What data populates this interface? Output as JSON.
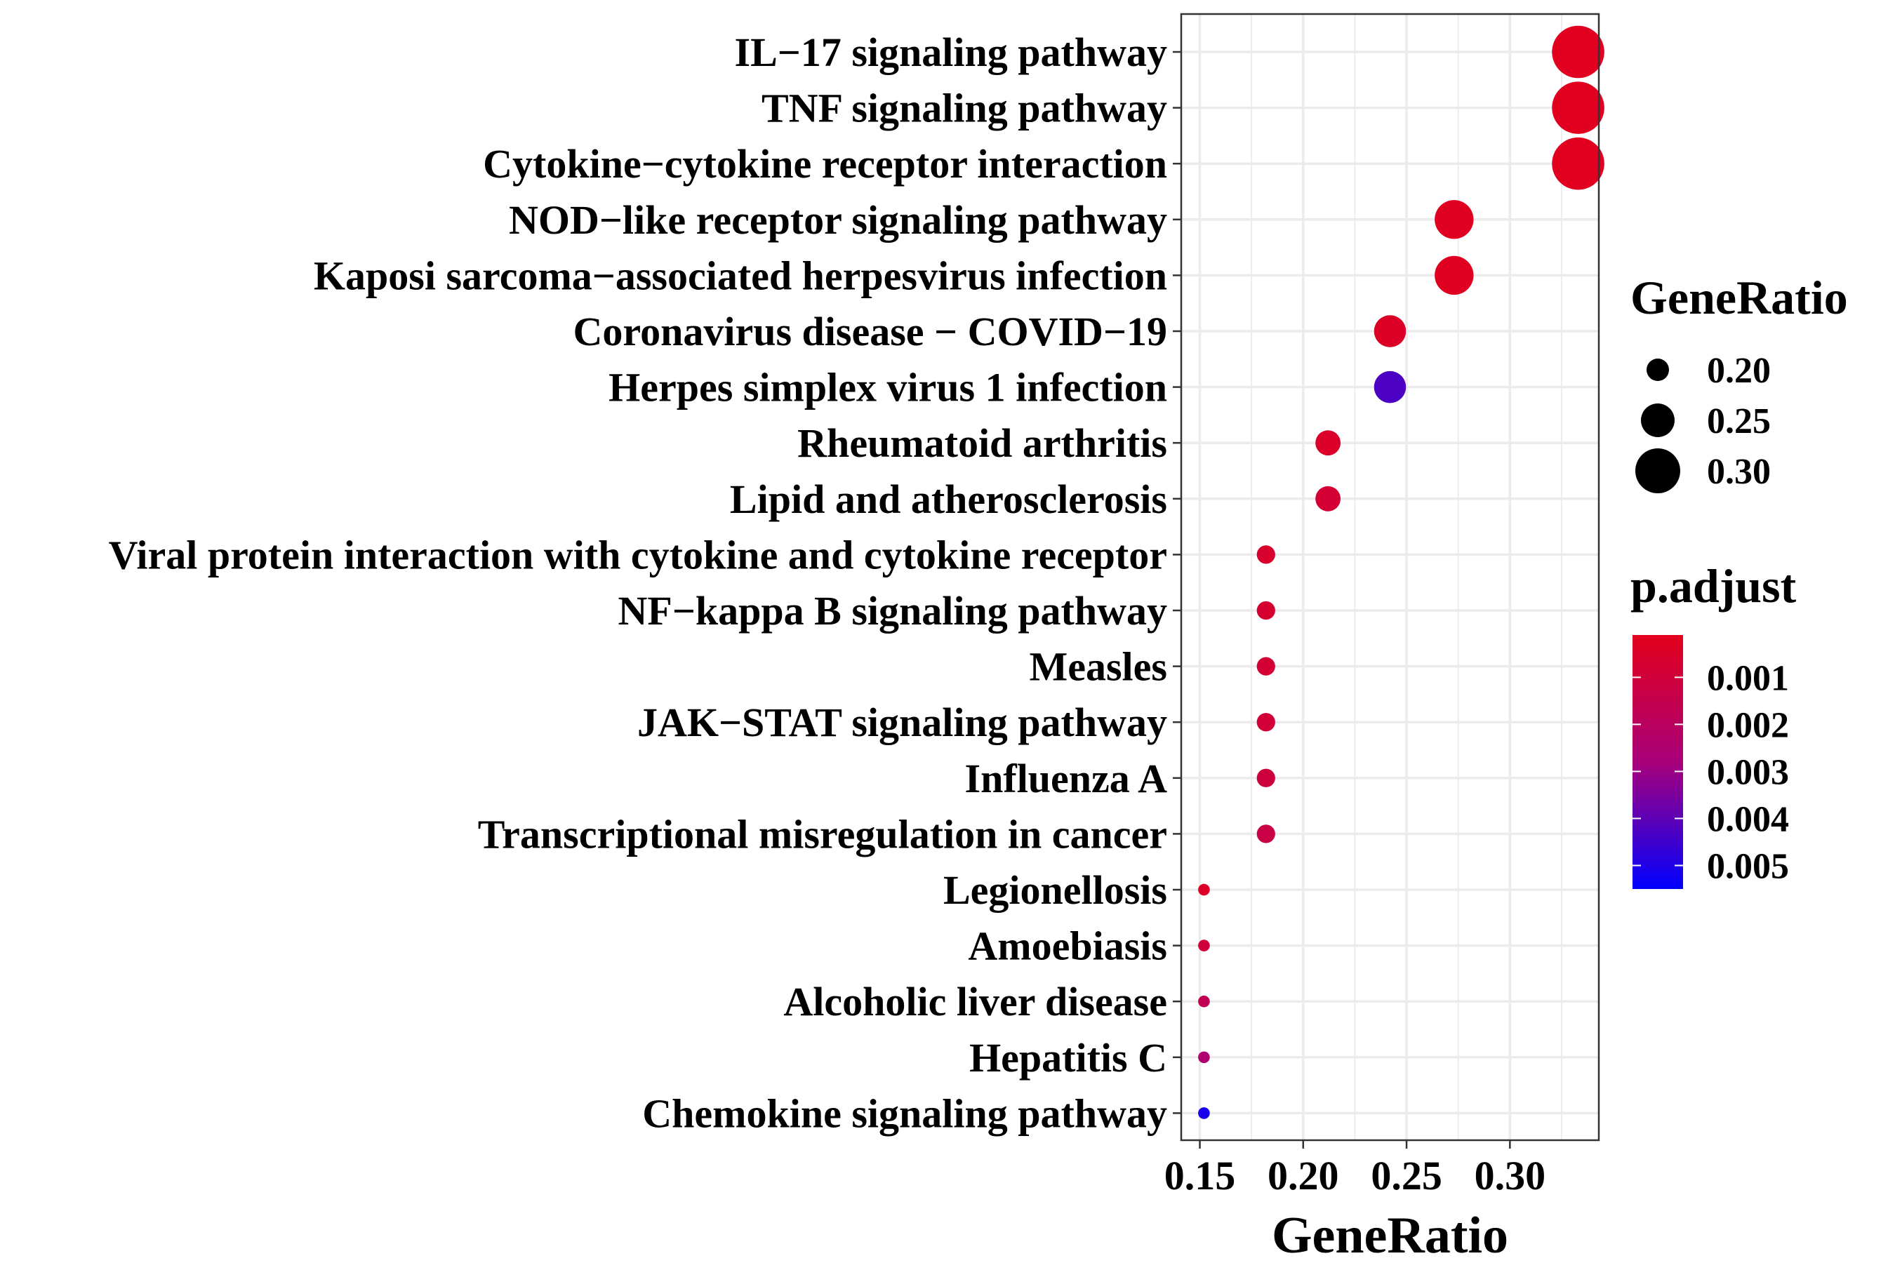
{
  "chart_data": {
    "type": "scatter",
    "xlabel": "GeneRatio",
    "ylabel": "",
    "xlim": [
      0.141,
      0.343
    ],
    "xticks": [
      "0.15",
      "0.20",
      "0.25",
      "0.30"
    ],
    "categories": [
      "IL−17 signaling pathway",
      "TNF signaling pathway",
      "Cytokine−cytokine receptor interaction",
      "NOD−like receptor signaling pathway",
      "Kaposi sarcoma−associated herpesvirus infection",
      "Coronavirus disease − COVID−19",
      "Herpes simplex virus 1 infection",
      "Rheumatoid arthritis",
      "Lipid and atherosclerosis",
      "Viral protein interaction with cytokine and cytokine receptor",
      "NF−kappa B signaling pathway",
      "Measles",
      "JAK−STAT signaling pathway",
      "Influenza A",
      "Transcriptional misregulation in cancer",
      "Legionellosis",
      "Amoebiasis",
      "Alcoholic liver disease",
      "Hepatitis C",
      "Chemokine signaling pathway"
    ],
    "gene_ratio": [
      0.333,
      0.333,
      0.333,
      0.273,
      0.273,
      0.242,
      0.242,
      0.212,
      0.212,
      0.182,
      0.182,
      0.182,
      0.182,
      0.182,
      0.182,
      0.152,
      0.152,
      0.152,
      0.152,
      0.152
    ],
    "p_adjust": [
      0.0002,
      0.0002,
      0.0002,
      0.0003,
      0.0003,
      0.0004,
      0.0043,
      0.0005,
      0.0008,
      0.0006,
      0.0007,
      0.0008,
      0.0009,
      0.0011,
      0.0013,
      0.0004,
      0.001,
      0.0017,
      0.0025,
      0.0051
    ],
    "size_legend": {
      "title": "GeneRatio",
      "values": [
        0.2,
        0.25,
        0.3
      ],
      "labels": [
        "0.20",
        "0.25",
        "0.30"
      ]
    },
    "color_legend": {
      "title": "p.adjust",
      "range": [
        0.0001,
        0.0055
      ],
      "ticks": [
        0.001,
        0.002,
        0.003,
        0.004,
        0.005
      ],
      "labels": [
        "0.001",
        "0.002",
        "0.003",
        "0.004",
        "0.005"
      ],
      "low_color": "#E3001B",
      "high_color": "#0000FF"
    },
    "grid": true,
    "legend_position": "right"
  }
}
